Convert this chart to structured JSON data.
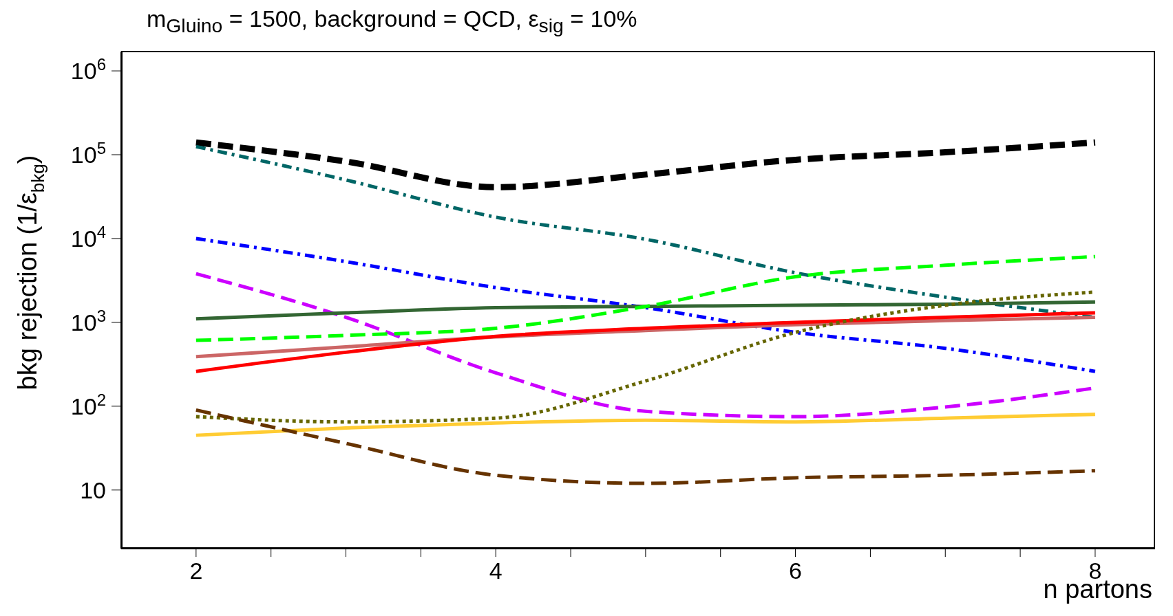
{
  "chart_data": {
    "type": "line",
    "title": "m$_{Gluino}$ = 1500, background = QCD, ε$_{sig}$ = 10%",
    "xlabel": "n partons",
    "ylabel": "bkg rejection (1/ε$_{bkg}$)",
    "x": [
      2,
      3,
      4,
      5,
      6,
      7,
      8
    ],
    "series": [
      {
        "color": "#000000",
        "line_style": "dashed",
        "values": [
          140000,
          83000,
          41000,
          58000,
          87000,
          107000,
          140000
        ]
      },
      {
        "color": "#006666",
        "line_style": "dashdot",
        "values": [
          125000,
          50000,
          18000,
          9800,
          3900,
          2000,
          1150
        ]
      },
      {
        "color": "#0000ff",
        "line_style": "dashdot",
        "values": [
          10000,
          5300,
          2600,
          1500,
          760,
          490,
          260
        ]
      },
      {
        "color": "#cc00ff",
        "line_style": "dashed",
        "values": [
          3800,
          1150,
          250,
          87,
          75,
          98,
          165
        ]
      },
      {
        "color": "#336633",
        "line_style": "solid",
        "values": [
          1100,
          1300,
          1500,
          1550,
          1600,
          1650,
          1750
        ]
      },
      {
        "color": "#00ff00",
        "line_style": "dashed",
        "values": [
          610,
          700,
          850,
          1550,
          3500,
          4800,
          6100
        ]
      },
      {
        "color": "#cc6666",
        "line_style": "solid",
        "values": [
          390,
          510,
          670,
          800,
          940,
          1050,
          1150
        ]
      },
      {
        "color": "#ff0000",
        "line_style": "solid",
        "values": [
          260,
          440,
          680,
          850,
          1000,
          1150,
          1300
        ]
      },
      {
        "color": "#666600",
        "line_style": "dotted",
        "values": [
          75,
          65,
          72,
          200,
          760,
          1600,
          2300
        ]
      },
      {
        "color": "#ffcc33",
        "line_style": "solid",
        "values": [
          45,
          55,
          63,
          68,
          65,
          72,
          80
        ]
      },
      {
        "color": "#663300",
        "line_style": "dashed",
        "values": [
          90,
          36,
          15,
          12,
          14,
          15,
          17
        ]
      }
    ],
    "log": "y",
    "xlim": [
      1.5,
      8.4
    ],
    "ylim": [
      2,
      1700000
    ],
    "xticks": [
      2,
      {
        "value": 2.5,
        "label": null
      },
      {
        "value": 3,
        "label": null
      },
      {
        "value": 3.5,
        "label": null
      },
      4,
      {
        "value": 4.5,
        "label": null
      },
      {
        "value": 5,
        "label": null
      },
      {
        "value": 5.5,
        "label": null
      },
      6,
      {
        "value": 6.5,
        "label": null
      },
      {
        "value": 7,
        "label": null
      },
      {
        "value": 7.5,
        "label": null
      },
      8
    ],
    "yticks": [
      10,
      {
        "value": 100,
        "label": "10$^{2}$"
      },
      {
        "value": 1000,
        "label": "10$^{3}$"
      },
      {
        "value": 10000,
        "label": "10$^{4}$"
      },
      {
        "value": 100000,
        "label": "10$^{5}$"
      },
      {
        "value": 1000000,
        "label": "10$^{6}$"
      }
    ],
    "grid": false,
    "legend": false,
    "marker": "none"
  }
}
